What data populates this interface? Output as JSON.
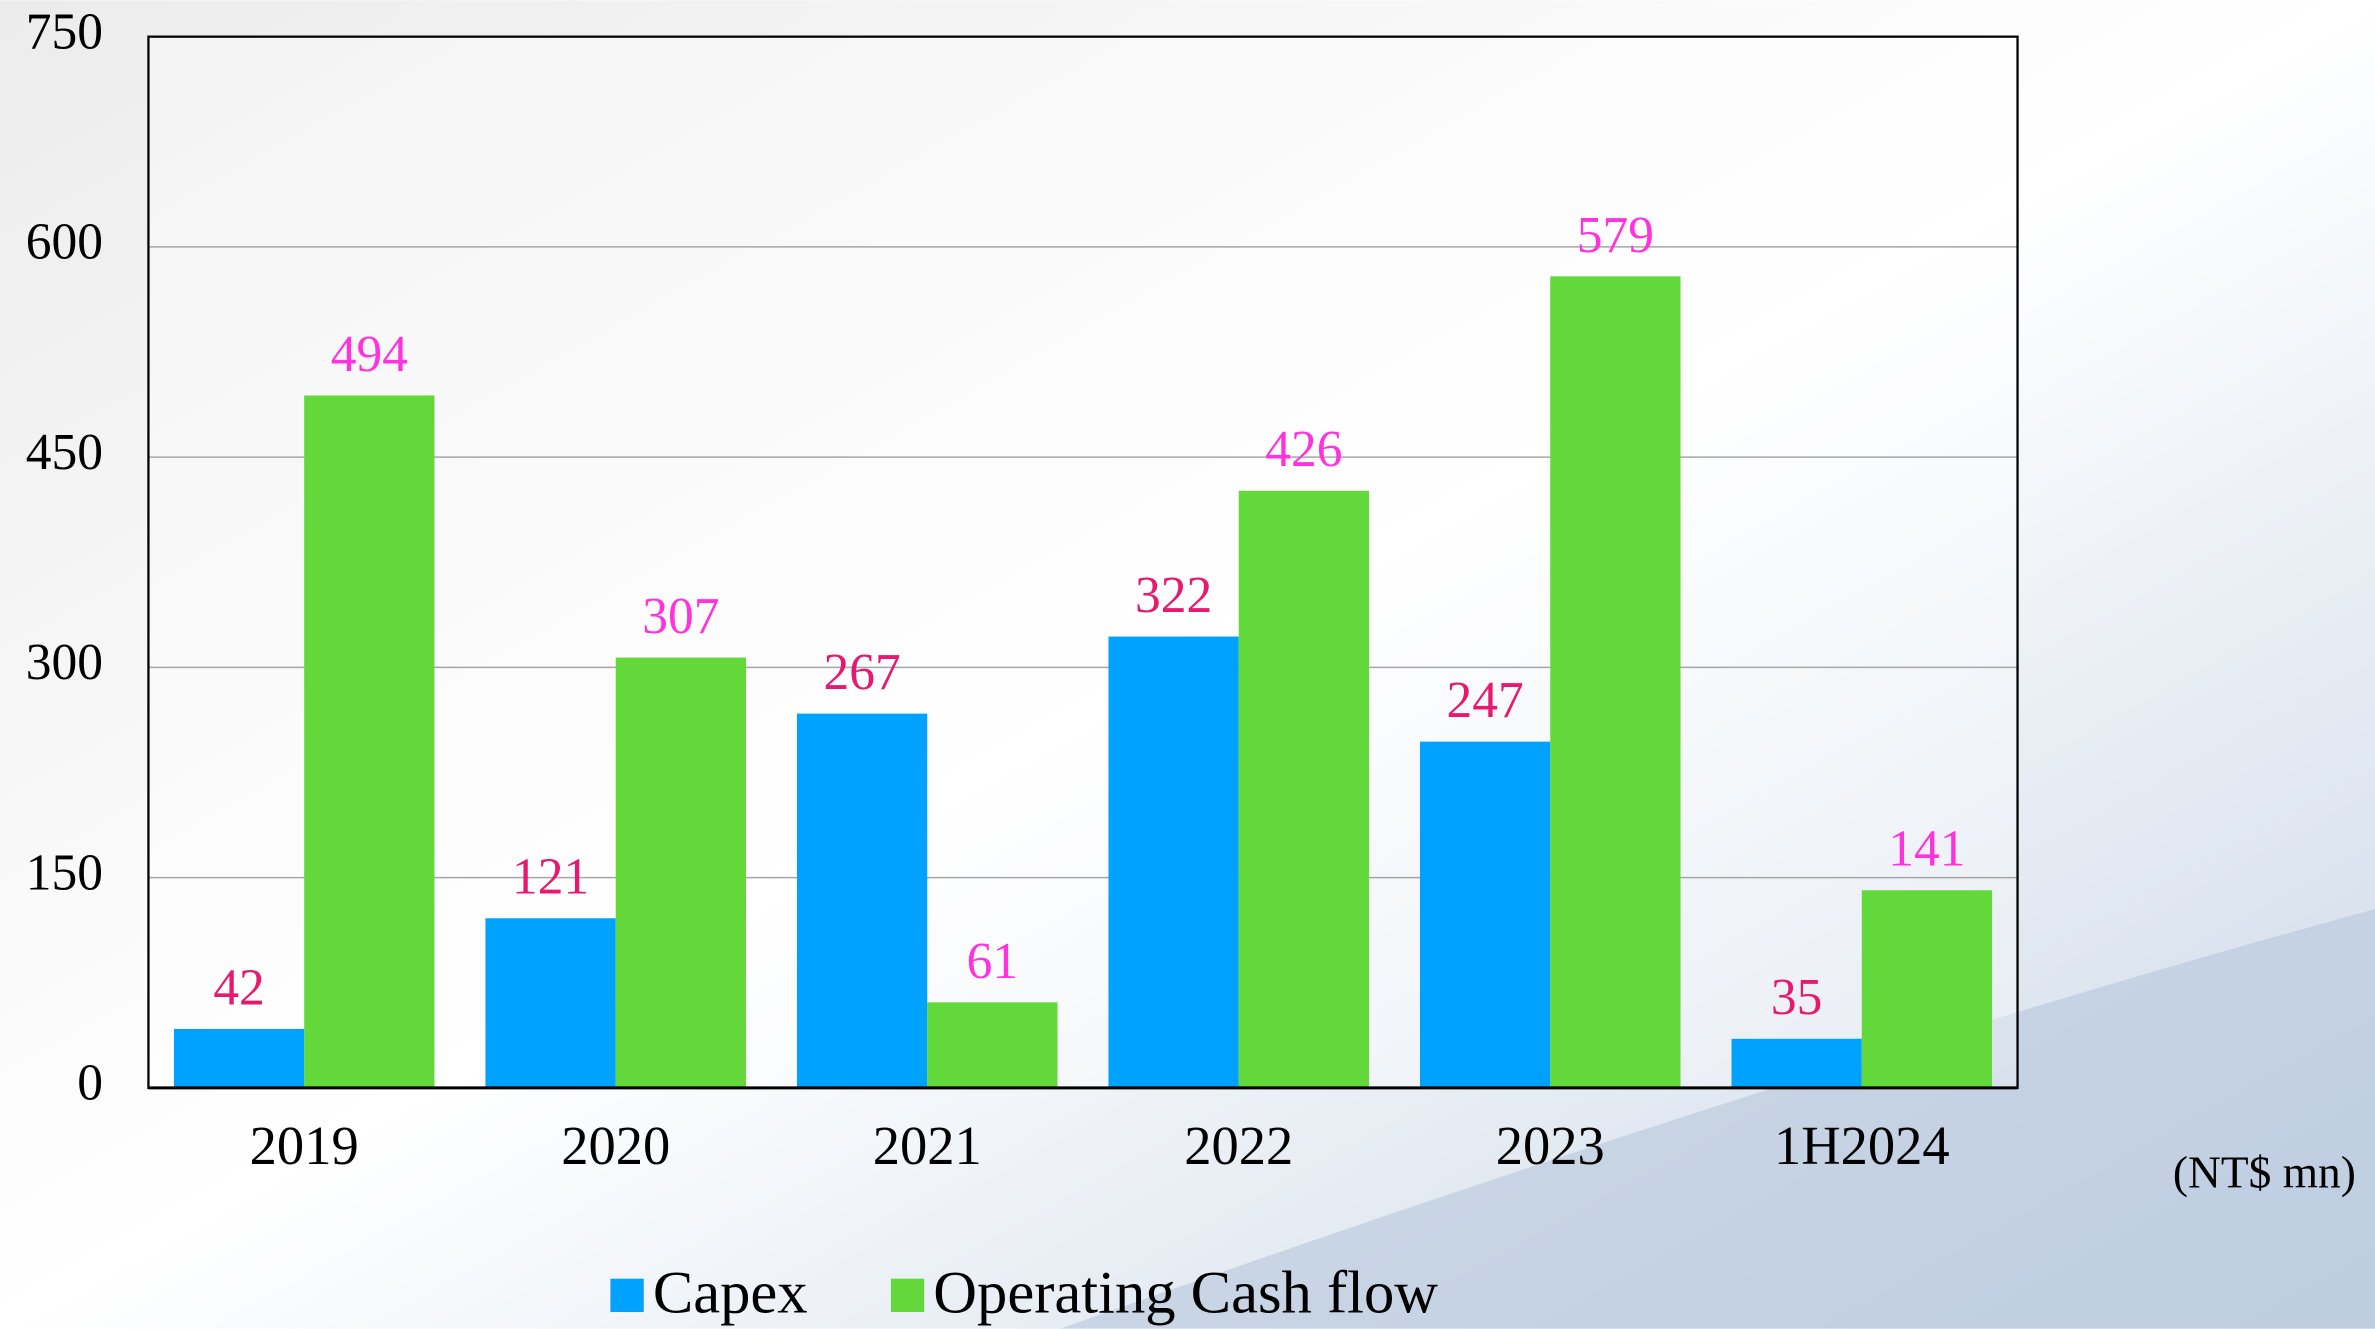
{
  "chart_data": {
    "type": "bar",
    "categories": [
      "2019",
      "2020",
      "2021",
      "2022",
      "2023",
      "1H2024"
    ],
    "series": [
      {
        "name": "Capex",
        "color": "#00a2ff",
        "label_color": "#e6196e",
        "values": [
          42,
          121,
          267,
          322,
          247,
          35
        ]
      },
      {
        "name": "Operating Cash flow",
        "color": "#62d83a",
        "label_color": "#ff33dd",
        "values": [
          494,
          307,
          61,
          426,
          579,
          141
        ]
      }
    ],
    "ylim": [
      0,
      750
    ],
    "yticks": [
      0,
      150,
      300,
      450,
      600,
      750
    ],
    "grid": true,
    "unit": "(NT$ mn)",
    "legend": "bottom"
  }
}
